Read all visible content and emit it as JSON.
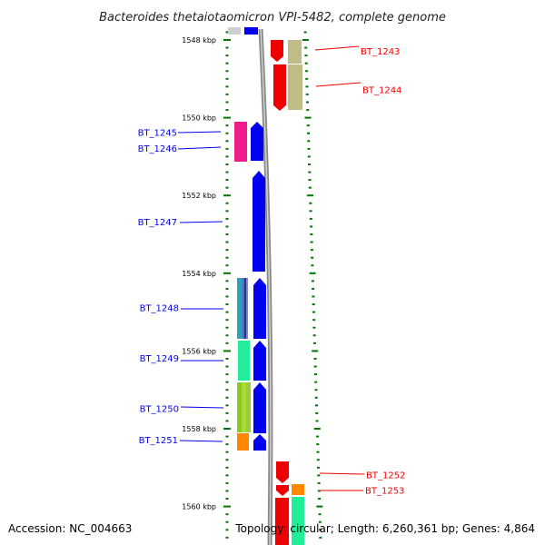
{
  "title": "Bacteroides thetaiotaomicron VPI-5482, complete genome",
  "footer": {
    "accession": "Accession: NC_004663",
    "topology": "Topology: circular; Length: 6,260,361 bp; Genes: 4,864"
  },
  "colors": {
    "forward": "#0000ee",
    "reverse": "#ee0000",
    "tick": "#007700",
    "backbone": "#888888"
  },
  "kbp_labels": [
    {
      "text": "1548 kbp",
      "kb": 1548
    },
    {
      "text": "1550 kbp",
      "kb": 1550
    },
    {
      "text": "1552 kbp",
      "kb": 1552
    },
    {
      "text": "1554 kbp",
      "kb": 1554
    },
    {
      "text": "1556 kbp",
      "kb": 1556
    },
    {
      "text": "1558 kbp",
      "kb": 1558
    },
    {
      "text": "1560 kbp",
      "kb": 1560
    }
  ],
  "left_genes": [
    {
      "label": "BT_1245",
      "kb": 1550.4
    },
    {
      "label": "BT_1246",
      "kb": 1550.8
    },
    {
      "label": "BT_1247",
      "kb": 1552.7
    },
    {
      "label": "BT_1248",
      "kb": 1554.9
    },
    {
      "label": "BT_1249",
      "kb": 1556.2
    },
    {
      "label": "BT_1250",
      "kb": 1557.5
    },
    {
      "label": "BT_1251",
      "kb": 1558.3
    }
  ],
  "right_genes": [
    {
      "label": "BT_1243",
      "kb": 1548.3
    },
    {
      "label": "BT_1244",
      "kb": 1549.3
    },
    {
      "label": "BT_1252",
      "kb": 1559.2
    },
    {
      "label": "BT_1253",
      "kb": 1559.6
    }
  ]
}
